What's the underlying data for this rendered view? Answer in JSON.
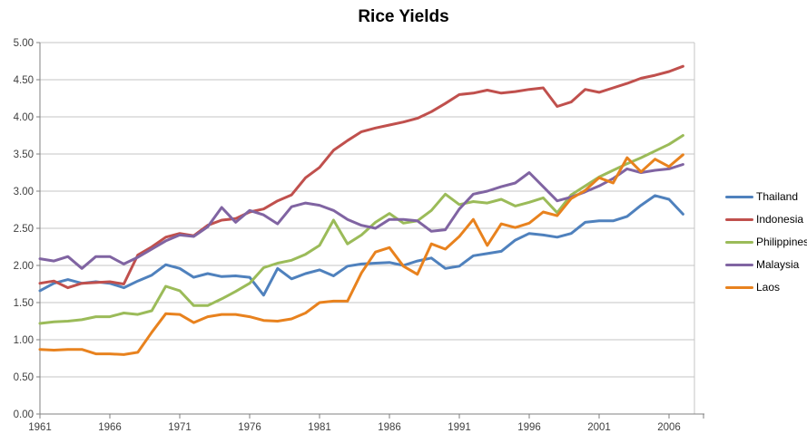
{
  "chart_data": {
    "type": "line",
    "title": "Rice Yields",
    "xlabel": "",
    "ylabel": "",
    "ylim": [
      0,
      5
    ],
    "y_tick_step": 0.5,
    "y_tick_labels": [
      "0.00",
      "0.50",
      "1.00",
      "1.50",
      "2.00",
      "2.50",
      "3.00",
      "3.50",
      "4.00",
      "4.50",
      "5.00"
    ],
    "x_tick_labels": [
      "1961",
      "1966",
      "1971",
      "1976",
      "1981",
      "1986",
      "1991",
      "1996",
      "2001",
      "2006"
    ],
    "grid": "horizontal",
    "legend_position": "right",
    "gridline_color": "#C6C6C6",
    "axis_color": "#808080",
    "label_color": "#404040",
    "years": [
      1961,
      1962,
      1963,
      1964,
      1965,
      1966,
      1967,
      1968,
      1969,
      1970,
      1971,
      1972,
      1973,
      1974,
      1975,
      1976,
      1977,
      1978,
      1979,
      1980,
      1981,
      1982,
      1983,
      1984,
      1985,
      1986,
      1987,
      1988,
      1989,
      1990,
      1991,
      1992,
      1993,
      1994,
      1995,
      1996,
      1997,
      1998,
      1999,
      2000,
      2001,
      2002,
      2003,
      2004,
      2005,
      2006,
      2007
    ],
    "series": [
      {
        "name": "Thailand",
        "color": "#4F81BD",
        "values": [
          1.66,
          1.76,
          1.81,
          1.76,
          1.78,
          1.76,
          1.7,
          1.79,
          1.87,
          2.01,
          1.96,
          1.84,
          1.89,
          1.85,
          1.86,
          1.84,
          1.6,
          1.96,
          1.82,
          1.89,
          1.94,
          1.86,
          1.99,
          2.02,
          2.03,
          2.04,
          2.0,
          2.06,
          2.1,
          1.96,
          1.99,
          2.13,
          2.16,
          2.19,
          2.34,
          2.43,
          2.41,
          2.38,
          2.43,
          2.58,
          2.6,
          2.6,
          2.66,
          2.81,
          2.94,
          2.89,
          2.69
        ]
      },
      {
        "name": "Indonesia",
        "color": "#C0504D",
        "values": [
          1.76,
          1.79,
          1.7,
          1.76,
          1.77,
          1.78,
          1.75,
          2.14,
          2.25,
          2.38,
          2.43,
          2.4,
          2.54,
          2.61,
          2.63,
          2.72,
          2.76,
          2.87,
          2.95,
          3.18,
          3.32,
          3.55,
          3.68,
          3.8,
          3.85,
          3.89,
          3.93,
          3.98,
          4.07,
          4.18,
          4.3,
          4.32,
          4.36,
          4.32,
          4.34,
          4.37,
          4.39,
          4.14,
          4.2,
          4.37,
          4.33,
          4.39,
          4.45,
          4.52,
          4.56,
          4.61,
          4.68
        ]
      },
      {
        "name": "Philippines",
        "color": "#9BBB59",
        "values": [
          1.22,
          1.24,
          1.25,
          1.27,
          1.31,
          1.31,
          1.36,
          1.34,
          1.39,
          1.72,
          1.66,
          1.46,
          1.46,
          1.55,
          1.65,
          1.76,
          1.97,
          2.03,
          2.07,
          2.15,
          2.27,
          2.61,
          2.29,
          2.41,
          2.58,
          2.7,
          2.57,
          2.6,
          2.74,
          2.96,
          2.82,
          2.86,
          2.84,
          2.89,
          2.8,
          2.85,
          2.91,
          2.71,
          2.95,
          3.07,
          3.19,
          3.28,
          3.37,
          3.45,
          3.54,
          3.63,
          3.75
        ]
      },
      {
        "name": "Malaysia",
        "color": "#8064A2",
        "values": [
          2.09,
          2.06,
          2.12,
          1.96,
          2.12,
          2.12,
          2.02,
          2.11,
          2.22,
          2.33,
          2.41,
          2.39,
          2.52,
          2.78,
          2.58,
          2.74,
          2.68,
          2.56,
          2.79,
          2.84,
          2.81,
          2.74,
          2.62,
          2.54,
          2.5,
          2.62,
          2.62,
          2.6,
          2.46,
          2.48,
          2.76,
          2.96,
          3.0,
          3.06,
          3.11,
          3.25,
          3.06,
          2.87,
          2.92,
          2.99,
          3.07,
          3.17,
          3.3,
          3.25,
          3.28,
          3.3,
          3.36
        ]
      },
      {
        "name": "Laos",
        "color": "#E8821E",
        "values": [
          0.87,
          0.86,
          0.87,
          0.87,
          0.81,
          0.81,
          0.8,
          0.83,
          1.1,
          1.35,
          1.34,
          1.23,
          1.31,
          1.34,
          1.34,
          1.31,
          1.26,
          1.25,
          1.28,
          1.36,
          1.5,
          1.52,
          1.52,
          1.9,
          2.18,
          2.24,
          1.99,
          1.88,
          2.29,
          2.22,
          2.39,
          2.62,
          2.27,
          2.56,
          2.51,
          2.57,
          2.72,
          2.67,
          2.9,
          3.01,
          3.18,
          3.11,
          3.45,
          3.26,
          3.43,
          3.33,
          3.49
        ]
      }
    ]
  }
}
